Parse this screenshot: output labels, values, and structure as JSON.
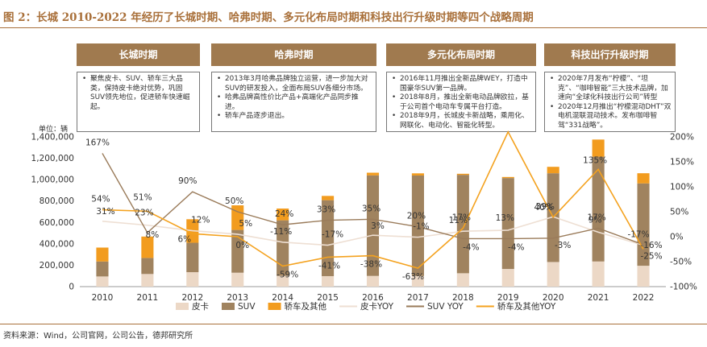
{
  "figure": {
    "title": "图 2：长城 2010-2022 年经历了长城时期、哈弗时期、多元化布局时期和科技出行升级时期等四个战略周期",
    "unit": "单位：辆",
    "source": "资料来源：Wind，公司官网，公司公告，德邦研究所"
  },
  "phases": [
    {
      "label": "长城时期",
      "notes": [
        "聚焦皮卡、SUV、轿车三大品类，保持皮卡绝对优势，巩固SUV领先地位，促进轿车快速崛起。"
      ]
    },
    {
      "label": "哈弗时期",
      "notes": [
        "2013年3月哈弗品牌独立运营，进一步加大对SUV的研发投入，全面布局SUV各细分市场。",
        "哈弗品牌高性价比产品+高端化产品同步推进。",
        "轿车产品逐步退出。"
      ]
    },
    {
      "label": "多元化布局时期",
      "notes": [
        "2016年11月推出全新品牌WEY，打造中国豪华SUV第一品牌。",
        "2018年8月，推出全新电动品牌欧拉，基于公司首个电动车专属平台打造。",
        "2018年9月，长城皮卡新战略，乘用化、网联化、电动化、智能化转型。"
      ]
    },
    {
      "label": "科技出行升级时期",
      "notes": [
        "2020年7月发布“柠檬”、“坦克”、“咖啡智能”三大技术品牌，加速向“全球化科技出行公司”转型",
        "2020年12月推出“柠檬混动DHT”双电机混联混动技术。发布咖啡智驾“331战略”。"
      ]
    }
  ],
  "chart_data": {
    "type": "bar+line",
    "categories": [
      "2010",
      "2011",
      "2012",
      "2013",
      "2014",
      "2015",
      "2016",
      "2017",
      "2018",
      "2019",
      "2020",
      "2021",
      "2022"
    ],
    "y_left": {
      "min": 0,
      "max": 1400000,
      "step": 200000,
      "ticks": [
        "0",
        "200,000",
        "400,000",
        "600,000",
        "800,000",
        "1,000,000",
        "1,200,000",
        "1,400,000"
      ]
    },
    "y_right": {
      "min": -100,
      "max": 200,
      "step": 50,
      "ticks": [
        "-100%",
        "-50%",
        "0%",
        "50%",
        "100%",
        "150%",
        "200%"
      ]
    },
    "series": [
      {
        "name": "皮卡",
        "type": "bar",
        "color": "#ecd8c6",
        "values": [
          95000,
          118000,
          135000,
          130000,
          100000,
          98000,
          100000,
          99000,
          125000,
          165000,
          230000,
          235000,
          195000
        ]
      },
      {
        "name": "SUV",
        "type": "bar",
        "color": "#a0835f",
        "values": [
          140000,
          150000,
          275000,
          400000,
          520000,
          710000,
          940000,
          940000,
          920000,
          850000,
          830000,
          980000,
          770000
        ]
      },
      {
        "name": "轿车及其他",
        "type": "bar",
        "color": "#f29c1f",
        "values": [
          130000,
          200000,
          220000,
          230000,
          110000,
          40000,
          25000,
          20000,
          10000,
          10000,
          60000,
          160000,
          95000
        ]
      },
      {
        "name": "皮卡YOY",
        "type": "line",
        "color": "#eedfd3",
        "values": [
          31,
          23,
          12,
          5,
          -11,
          -17,
          3,
          -1,
          11,
          13,
          40,
          9,
          -17
        ],
        "labels": [
          "31%",
          "23%",
          "12%",
          "5%",
          "-11%",
          "-17%",
          "3%",
          "-1%",
          "11%",
          "13%",
          "40%",
          "9%",
          "-17%"
        ]
      },
      {
        "name": "SUV YOY",
        "type": "line",
        "color": "#9a7b5a",
        "values": [
          167,
          8,
          90,
          50,
          24,
          33,
          35,
          20,
          -4,
          -4,
          -3,
          17,
          -16
        ],
        "labels": [
          "167%",
          "8%",
          "90%",
          "50%",
          "24%",
          "33%",
          "35%",
          "20%",
          "-4%",
          "-4%",
          "-3%",
          "17%",
          "-16%"
        ]
      },
      {
        "name": "轿车及其他YOY",
        "type": "line",
        "color": "#f4a21f",
        "values": [
          54,
          51,
          6,
          0,
          -59,
          -41,
          -38,
          -63,
          17,
          210,
          39,
          135,
          -25
        ],
        "labels": [
          "54%",
          "51%",
          "6%",
          "0%",
          "-59%",
          "-41%",
          "-38%",
          "-63%",
          "17%",
          "",
          "39%",
          "135%",
          "-25%"
        ]
      }
    ],
    "legend_labels": [
      "皮卡",
      "SUV",
      "轿车及其他",
      "皮卡YOY",
      "SUV YOY",
      "轿车及其他YOY"
    ],
    "legend": "bottom"
  }
}
